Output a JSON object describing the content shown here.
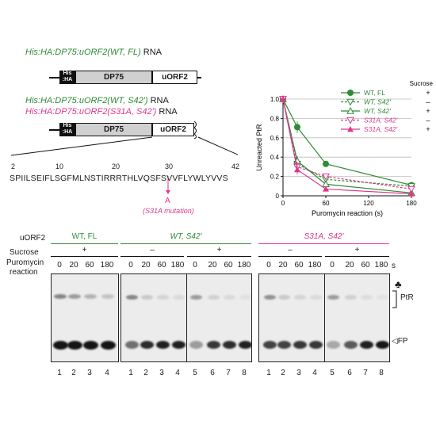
{
  "constructs": {
    "c1_title": "His:HA:DP75:uORF2(WT, FL)",
    "c1_suffix": " RNA",
    "c2_title": "His:HA:DP75:uORF2(WT, S42')",
    "c2_suffix": " RNA",
    "c3_title": "His:HA:DP75:uORF2(S31A, S42')",
    "c3_suffix": " RNA",
    "tag_top": "His",
    "tag_bottom": ":HA",
    "dp75": "DP75",
    "uorf2": "uORF2"
  },
  "sequence": {
    "positions": [
      "2",
      "10",
      "20",
      "30",
      "42"
    ],
    "text": "SPIILSEIFLSGFMLNSTIRRRTHLVQSFSVVFLYWLYVVS",
    "mutation_letter": "A",
    "mutation_label": "(S31A mutation)"
  },
  "chart_data": {
    "type": "line",
    "xlabel": "Puromycin reaction (s)",
    "ylabel": "Unreacted PtR",
    "x": [
      0,
      20,
      60,
      180
    ],
    "xticks": [
      "0",
      "60",
      "120",
      "180"
    ],
    "yticks": [
      "0",
      "0.2",
      "0.4",
      "0.6",
      "0.8",
      "1.0"
    ],
    "xlim": [
      0,
      180
    ],
    "ylim": [
      0,
      1.0
    ],
    "legend_header": "Sucrose",
    "legend_position": "top-right",
    "series": [
      {
        "name": "WT, FL",
        "sucrose": "+",
        "color": "#2e8b36",
        "dashed": false,
        "marker": "circle",
        "values": [
          1.0,
          0.71,
          0.33,
          0.11
        ],
        "errors": [
          0,
          0.06,
          0,
          0
        ]
      },
      {
        "name": "WT, S42'",
        "sucrose": "–",
        "color": "#2e8b36",
        "dashed": true,
        "marker": "triangle-down-open",
        "values": [
          1.0,
          0.33,
          0.17,
          0.1
        ],
        "errors": [
          0,
          0.05,
          0,
          0
        ]
      },
      {
        "name": "WT, S42'",
        "sucrose": "+",
        "color": "#2e8b36",
        "dashed": false,
        "marker": "triangle-up-open",
        "values": [
          1.0,
          0.36,
          0.12,
          0.03
        ],
        "errors": [
          0,
          0.05,
          0,
          0
        ]
      },
      {
        "name": "S31A, S42'",
        "sucrose": "–",
        "color": "#e0368c",
        "dashed": true,
        "marker": "triangle-down-open",
        "values": [
          1.0,
          0.3,
          0.2,
          0.07
        ],
        "errors": [
          0,
          0.05,
          0,
          0
        ]
      },
      {
        "name": "S31A, S42'",
        "sucrose": "+",
        "color": "#e0368c",
        "dashed": false,
        "marker": "triangle-up-filled",
        "values": [
          1.0,
          0.27,
          0.07,
          0.02
        ],
        "errors": [
          0,
          0.05,
          0,
          0
        ]
      }
    ]
  },
  "gel": {
    "row_label_uorf2": "uORF2",
    "row_label_sucrose": "Sucrose",
    "row_label_puromycin": "Puromycin",
    "row_label_reaction": "reaction",
    "group1": "WT, FL",
    "group2": "WT, S42'",
    "group3": "S31A, S42'",
    "plus": "+",
    "minus": "–",
    "times": [
      "0",
      "20",
      "60",
      "180"
    ],
    "unit": "s",
    "lanes": [
      "1",
      "2",
      "3",
      "4"
    ],
    "lanes8": [
      "1",
      "2",
      "3",
      "4",
      "5",
      "6",
      "7",
      "8"
    ],
    "ptr_label": "PtR",
    "fp_label": "◁FP",
    "club": "♣"
  }
}
